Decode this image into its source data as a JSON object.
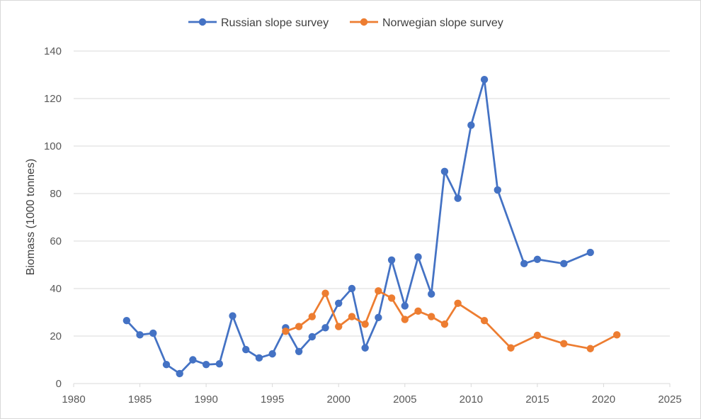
{
  "chart_data": {
    "type": "line",
    "title": "",
    "xlabel": "",
    "ylabel": "Biomass (1000 tonnes)",
    "xlim": [
      1980,
      2025
    ],
    "ylim": [
      0,
      140
    ],
    "xticks": [
      1980,
      1985,
      1990,
      1995,
      2000,
      2005,
      2010,
      2015,
      2020,
      2025
    ],
    "yticks": [
      0,
      20,
      40,
      60,
      80,
      100,
      120,
      140
    ],
    "grid": "horizontal",
    "legend_position": "top-center",
    "series": [
      {
        "name": "Russian slope survey",
        "color": "#4472C4",
        "x": [
          1984,
          1985,
          1986,
          1987,
          1988,
          1989,
          1990,
          1991,
          1992,
          1993,
          1994,
          1995,
          1996,
          1997,
          1998,
          1999,
          2000,
          2001,
          2002,
          2003,
          2004,
          2005,
          2006,
          2007,
          2008,
          2009,
          2010,
          2011,
          2012,
          2014,
          2015,
          2017,
          2019
        ],
        "y": [
          26.5,
          20.5,
          21.2,
          8.0,
          4.2,
          10.0,
          8.0,
          8.3,
          28.5,
          14.3,
          10.8,
          12.5,
          23.5,
          13.5,
          19.7,
          23.5,
          33.8,
          40.0,
          15.0,
          27.8,
          52.0,
          32.7,
          53.3,
          37.7,
          89.3,
          78.0,
          108.8,
          128.0,
          81.5,
          50.5,
          52.3,
          50.5,
          55.2
        ]
      },
      {
        "name": "Norwegian slope survey",
        "color": "#ED7D31",
        "x": [
          1996,
          1997,
          1998,
          1999,
          2000,
          2001,
          2002,
          2003,
          2004,
          2005,
          2006,
          2007,
          2008,
          2009,
          2011,
          2013,
          2015,
          2017,
          2019,
          2021
        ],
        "y": [
          22.0,
          24.0,
          28.2,
          38.0,
          24.0,
          28.2,
          25.0,
          39.0,
          36.0,
          27.0,
          30.5,
          28.2,
          25.0,
          33.8,
          26.5,
          15.0,
          20.3,
          16.8,
          14.7,
          20.5
        ]
      }
    ]
  }
}
